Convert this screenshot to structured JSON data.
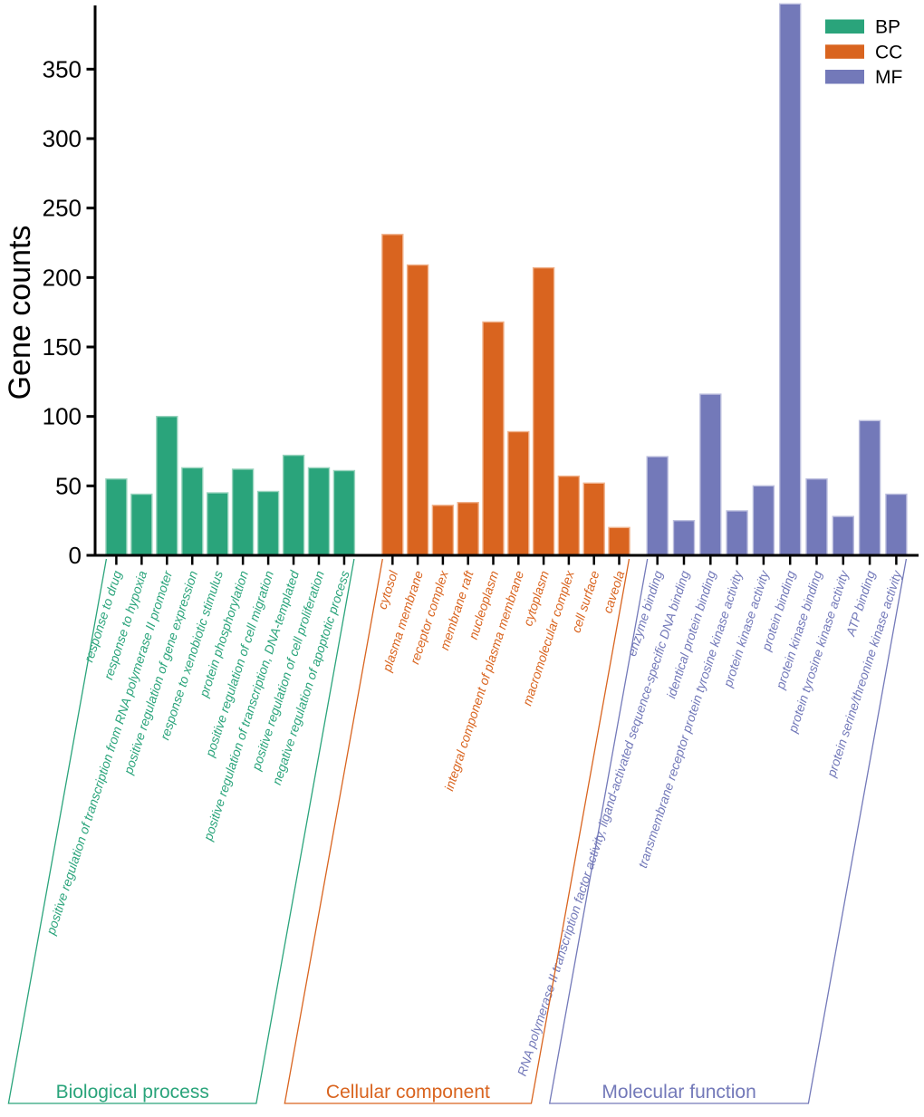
{
  "figure": {
    "background": "#ffffff"
  },
  "chart_data": {
    "type": "bar",
    "title": "",
    "ylabel": "Gene counts",
    "ylim": [
      0,
      395
    ],
    "yticks": [
      0,
      50,
      100,
      150,
      200,
      250,
      300,
      350
    ],
    "grid": false,
    "legend_position": "top-right",
    "axis_color": "#000000",
    "legend": [
      {
        "label": "BP",
        "color": "#2AA47B"
      },
      {
        "label": "CC",
        "color": "#D9641F"
      },
      {
        "label": "MF",
        "color": "#7379B9"
      }
    ],
    "groups": [
      {
        "id": "BP",
        "name": "Biological process",
        "color": "#2AA47B",
        "border": "#9AD4BE",
        "categories": [
          "response to drug",
          "response to hypoxia",
          "positive regulation of transcription from RNA polymerase II promoter",
          "positive regulation of gene expression",
          "response to xenobiotic stimulus",
          "protein phosphorylation",
          "positive regulation of cell migration",
          "positive regulation of transcription, DNA-templated",
          "positive regulation of cell proliferation",
          "negative regulation of apoptotic process"
        ],
        "values": [
          55,
          44,
          100,
          63,
          45,
          62,
          46,
          72,
          63,
          61
        ]
      },
      {
        "id": "CC",
        "name": "Cellular component",
        "color": "#D9641F",
        "border": "#F0B28C",
        "categories": [
          "cytosol",
          "plasma membrane",
          "receptor complex",
          "membrane raft",
          "nucleoplasm",
          "integral component of plasma membrane",
          "cytoplasm",
          "macromolecular complex",
          "cell surface",
          "caveola"
        ],
        "values": [
          231,
          209,
          36,
          38,
          168,
          89,
          207,
          57,
          52,
          20
        ]
      },
      {
        "id": "MF",
        "name": "Molecular function",
        "color": "#7379B9",
        "border": "#BCBFDE",
        "categories": [
          "enzyme binding",
          "RNA polymerase II transcription factor activity, ligand-activated sequence-specific DNA binding",
          "identical protein binding",
          "transmembrane receptor protein tyrosine kinase activity",
          "protein kinase activity",
          "protein binding",
          "protein kinase binding",
          "protein tyrosine kinase activity",
          "ATP binding",
          "protein serine/threonine kinase activity"
        ],
        "values": [
          71,
          25,
          116,
          32,
          50,
          397,
          55,
          28,
          97,
          44
        ]
      }
    ]
  }
}
